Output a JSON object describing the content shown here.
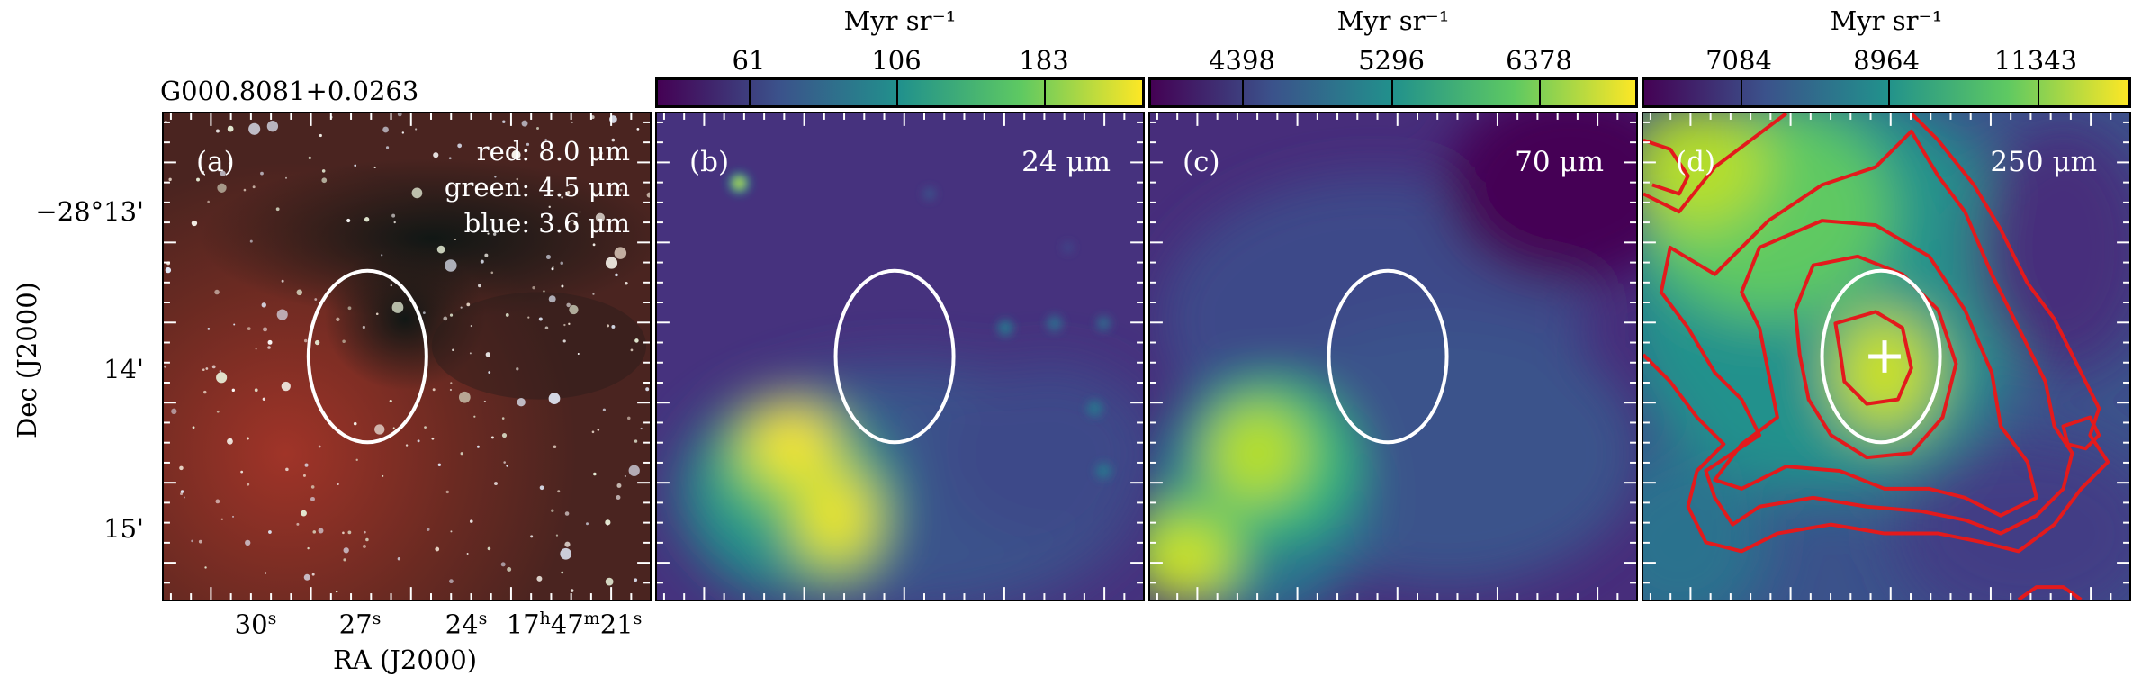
{
  "source_name": "G000.8081+0.0263",
  "axes": {
    "ylabel": "Dec (J2000)",
    "xlabel": "RA (J2000)",
    "yticks": [
      "−28°13'",
      "14'",
      "15'"
    ],
    "xticks": [
      {
        "main": "30",
        "sup": "s"
      },
      {
        "main": "27",
        "sup": "s"
      },
      {
        "main": "24",
        "sup": "s"
      },
      {
        "main": "17",
        "sup": "h",
        "main2": "47",
        "sup2": "m",
        "main3": "21",
        "sup3": "s"
      }
    ]
  },
  "panels": [
    {
      "label": "(a)",
      "legend": [
        "red: 8.0 μm",
        "green: 4.5 μm",
        "blue: 3.6 μm"
      ]
    },
    {
      "label": "(b)",
      "band": "24 μm",
      "colorbar": {
        "title": "Myr sr⁻¹",
        "ticks": [
          "61",
          "106",
          "183"
        ]
      }
    },
    {
      "label": "(c)",
      "band": "70 μm",
      "colorbar": {
        "title": "Myr sr⁻¹",
        "ticks": [
          "4398",
          "5296",
          "6378"
        ]
      }
    },
    {
      "label": "(d)",
      "band": "250 μm",
      "colorbar": {
        "title": "Myr sr⁻¹",
        "ticks": [
          "7084",
          "8964",
          "11343"
        ]
      }
    }
  ],
  "colors": {
    "viridis_dark": "#440154",
    "viridis_mid": "#21918c",
    "viridis_bright": "#fde725",
    "contour": "#e31a1c",
    "ellipse": "#ffffff"
  }
}
